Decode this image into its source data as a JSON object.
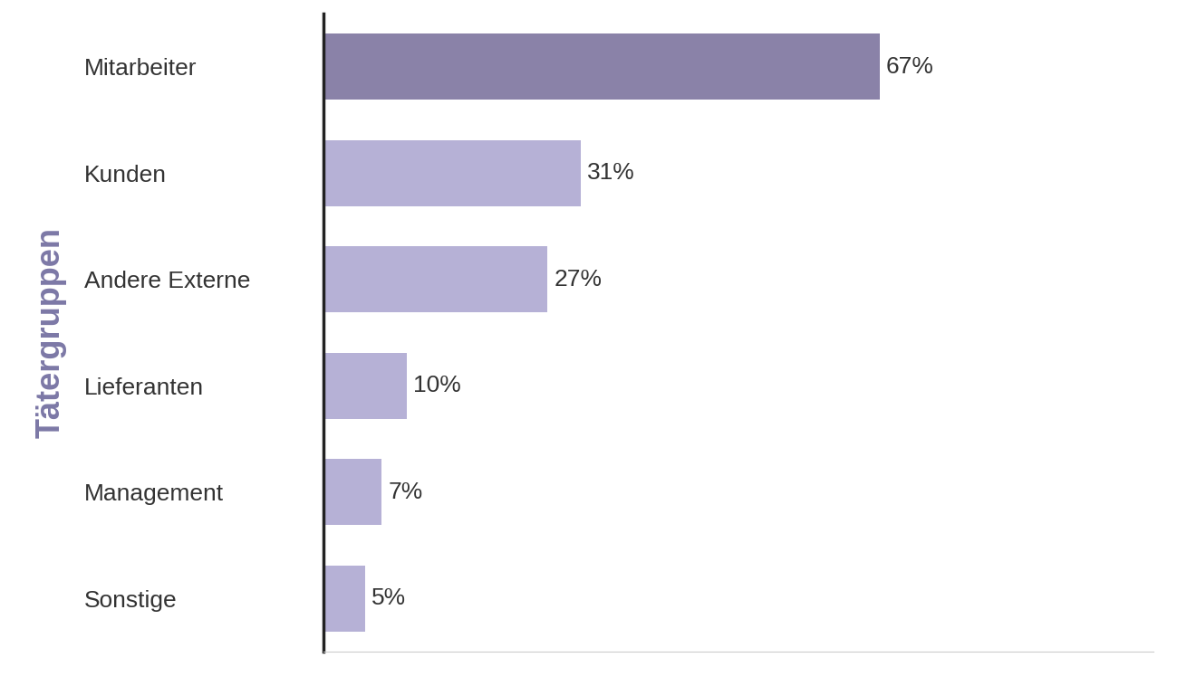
{
  "chart_data": {
    "type": "bar",
    "orientation": "horizontal",
    "y_label": "Tätergruppen",
    "categories": [
      "Mitarbeiter",
      "Kunden",
      "Andere Externe",
      "Lieferanten",
      "Management",
      "Sonstige"
    ],
    "values": [
      67,
      31,
      27,
      10,
      7,
      5
    ],
    "value_labels": [
      "67%",
      "31%",
      "27%",
      "10%",
      "7%",
      "5%"
    ],
    "colors": [
      "#8a82a8",
      "#b6b1d6",
      "#b6b1d6",
      "#b6b1d6",
      "#b6b1d6",
      "#b6b1d6"
    ],
    "xlim": [
      0,
      100
    ],
    "data_labels": true,
    "tick_labels": "y",
    "grid": false
  }
}
